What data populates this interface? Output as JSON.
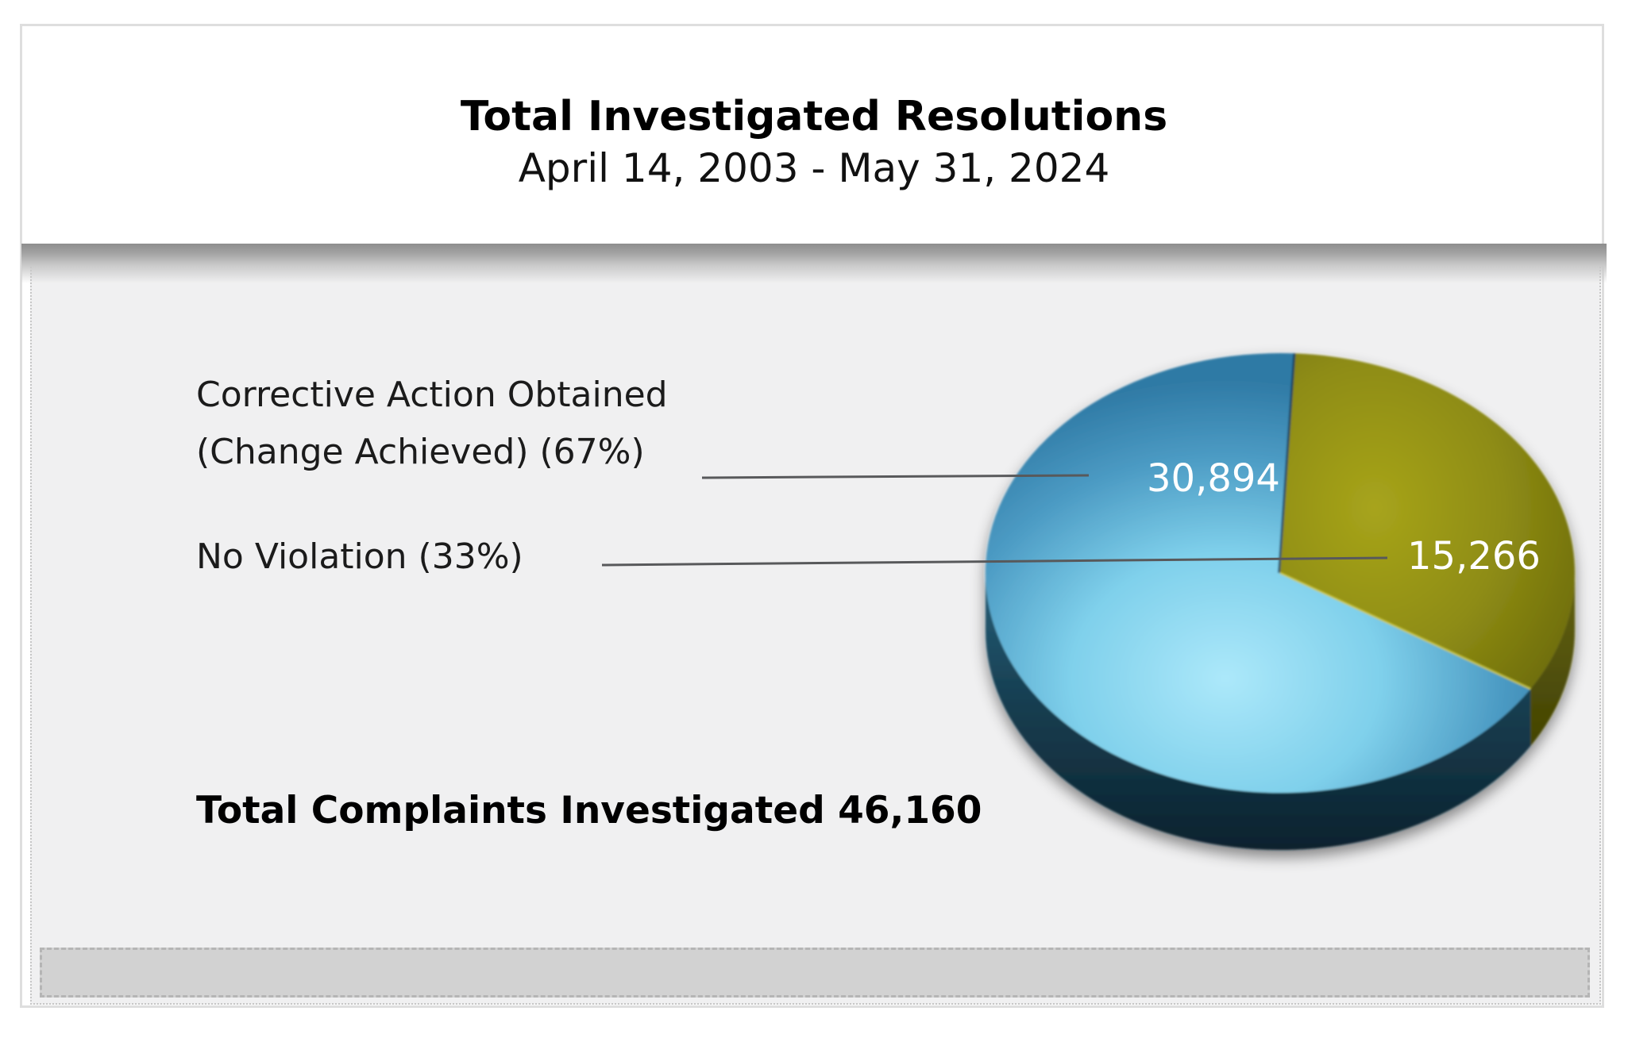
{
  "header": {
    "title": "Total Investigated Resolutions",
    "subtitle": "April 14, 2003 - May 31, 2024"
  },
  "chart_data": {
    "type": "pie",
    "style": "3d-pie",
    "title": "Total Investigated Resolutions",
    "subtitle": "April 14, 2003 - May 31, 2024",
    "start_angle_deg": 87,
    "direction": "clockwise",
    "legend_position": "left-callouts",
    "slices": [
      {
        "label": "Corrective Action Obtained (Change Achieved)",
        "callout_line1": "Corrective Action Obtained",
        "callout_line2": "(Change Achieved) (67%)",
        "value": 30894,
        "value_label": "30,894",
        "percent": 67,
        "color": "#3e8ab2"
      },
      {
        "label": "No Violation",
        "callout_line1": "No Violation (33%)",
        "value": 15266,
        "value_label": "15,266",
        "percent": 33,
        "color": "#8f8d13"
      }
    ],
    "total_value": 46160,
    "total_label": "Total Complaints Investigated 46,160"
  }
}
